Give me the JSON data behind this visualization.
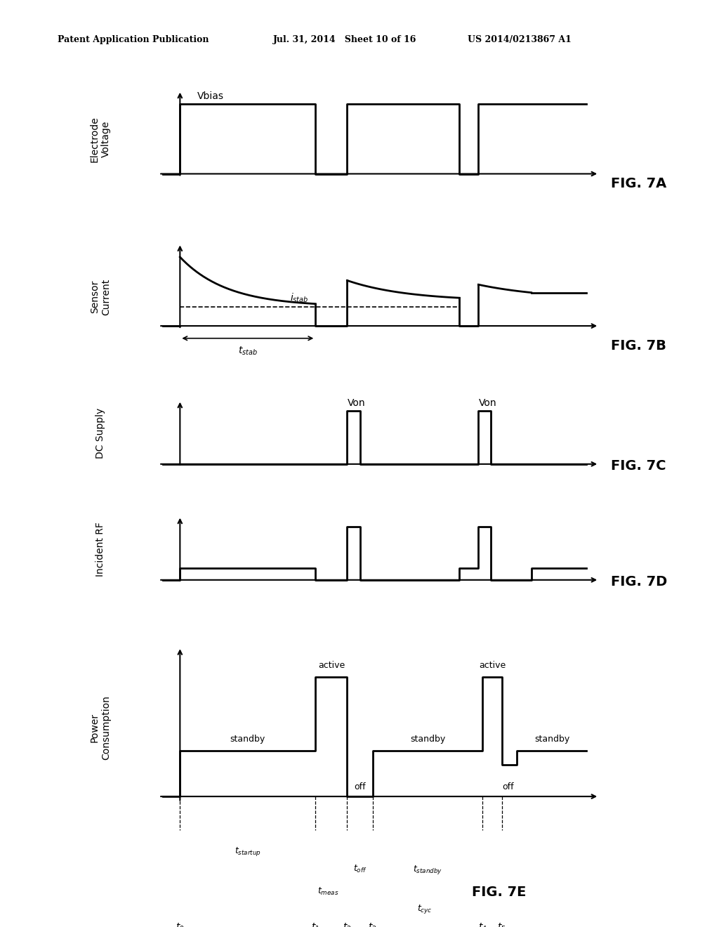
{
  "bg_color": "#ffffff",
  "header_left": "Patent Application Publication",
  "header_mid": "Jul. 31, 2014   Sheet 10 of 16",
  "header_right": "US 2014/0213867 A1",
  "fig_labels": [
    "FIG. 7A",
    "FIG. 7B",
    "FIG. 7C",
    "FIG. 7D",
    "FIG. 7E"
  ],
  "lw": 2.0
}
